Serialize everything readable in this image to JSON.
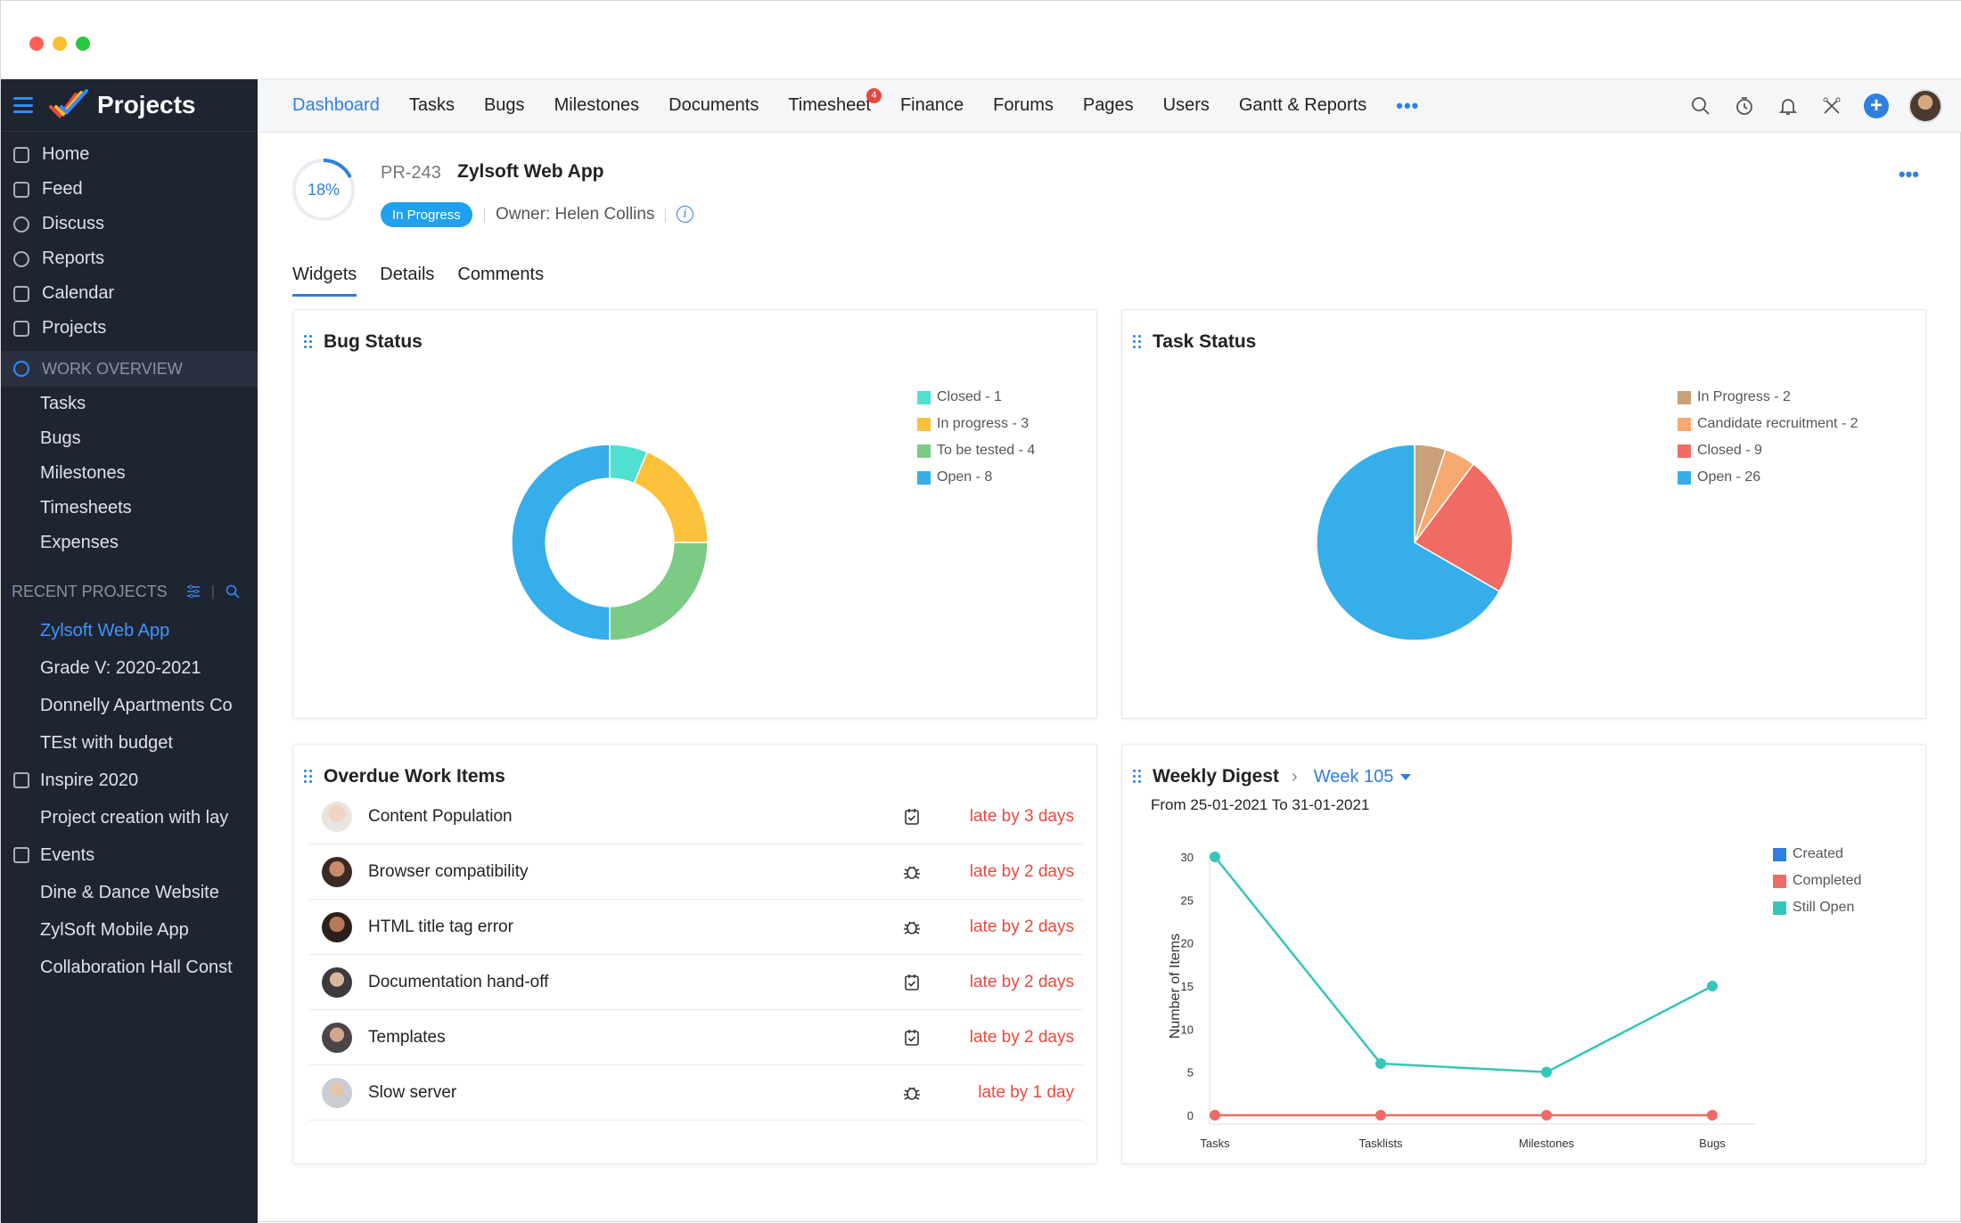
{
  "sidebar": {
    "brand": "Projects",
    "main_items": [
      {
        "label": "Home",
        "icon": "home-icon"
      },
      {
        "label": "Feed",
        "icon": "feed-icon"
      },
      {
        "label": "Discuss",
        "icon": "discuss-icon"
      },
      {
        "label": "Reports",
        "icon": "reports-icon"
      },
      {
        "label": "Calendar",
        "icon": "calendar-icon"
      },
      {
        "label": "Projects",
        "icon": "projects-icon"
      }
    ],
    "work_overview": {
      "label": "WORK OVERVIEW",
      "items": [
        "Tasks",
        "Bugs",
        "Milestones",
        "Timesheets",
        "Expenses"
      ]
    },
    "recent_projects": {
      "label": "RECENT PROJECTS",
      "items": [
        {
          "label": "Zylsoft Web App",
          "active": true,
          "group": false
        },
        {
          "label": "Grade V: 2020-2021",
          "active": false,
          "group": false
        },
        {
          "label": "Donnelly Apartments Co",
          "active": false,
          "group": false
        },
        {
          "label": "TEst with budget",
          "active": false,
          "group": false
        },
        {
          "label": "Inspire 2020",
          "active": false,
          "group": true
        },
        {
          "label": "Project creation with lay",
          "active": false,
          "group": false
        },
        {
          "label": "Events",
          "active": false,
          "group": true
        },
        {
          "label": "Dine & Dance Website",
          "active": false,
          "group": false
        },
        {
          "label": "ZylSoft Mobile App",
          "active": false,
          "group": false
        },
        {
          "label": "Collaboration Hall Const",
          "active": false,
          "group": false
        }
      ]
    }
  },
  "topnav": {
    "tabs": [
      "Dashboard",
      "Tasks",
      "Bugs",
      "Milestones",
      "Documents",
      "Timesheet",
      "Finance",
      "Forums",
      "Pages",
      "Users",
      "Gantt & Reports"
    ],
    "active_tab": "Dashboard",
    "timesheet_badge": "4",
    "more": "•••",
    "icons": [
      "search-icon",
      "timer-icon",
      "bell-icon",
      "tools-icon",
      "plus-icon",
      "user-avatar"
    ]
  },
  "project": {
    "progress_label": "18%",
    "progress": 0.18,
    "id": "PR-243",
    "name": "Zylsoft Web App",
    "status": "In Progress",
    "owner_label": "Owner:",
    "owner": "Helen Collins",
    "more": "•••"
  },
  "subtabs": [
    "Widgets",
    "Details",
    "Comments"
  ],
  "bug_status": {
    "title": "Bug Status",
    "legend": [
      "Closed - 1",
      "In progress - 3",
      "To be tested - 4",
      "Open - 8"
    ],
    "chart_data": {
      "type": "pie",
      "donut": true,
      "categories": [
        "Closed",
        "In progress",
        "To be tested",
        "Open"
      ],
      "values": [
        1,
        3,
        4,
        8
      ],
      "colors": [
        "#4fe0cf",
        "#fbc13b",
        "#7bcb84",
        "#35aeea"
      ]
    }
  },
  "task_status": {
    "title": "Task Status",
    "legend": [
      "In Progress - 2",
      "Candidate recruitment - 2",
      "Closed - 9",
      "Open - 26"
    ],
    "chart_data": {
      "type": "pie",
      "donut": false,
      "categories": [
        "In Progress",
        "Candidate recruitment",
        "Closed",
        "Open"
      ],
      "values": [
        2,
        2,
        9,
        26
      ],
      "colors": [
        "#c8a07a",
        "#f6a970",
        "#f06b64",
        "#35aeea"
      ]
    }
  },
  "overdue": {
    "title": "Overdue Work Items",
    "items": [
      {
        "label": "Content Population",
        "type": "task-icon",
        "late": "late by 3 days"
      },
      {
        "label": "Browser compatibility",
        "type": "bug-icon",
        "late": "late by 2 days"
      },
      {
        "label": "HTML title tag error",
        "type": "bug-icon",
        "late": "late by 2 days"
      },
      {
        "label": "Documentation hand-off",
        "type": "task-icon",
        "late": "late by 2 days"
      },
      {
        "label": "Templates",
        "type": "task-icon",
        "late": "late by 2 days"
      },
      {
        "label": "Slow server",
        "type": "bug-icon",
        "late": "late by 1 day"
      }
    ]
  },
  "weekly_digest": {
    "title": "Weekly Digest",
    "week": "Week 105",
    "range": "From 25-01-2021 To 31-01-2021",
    "chart_data": {
      "type": "line",
      "categories": [
        "Tasks",
        "Tasklists",
        "Milestones",
        "Bugs"
      ],
      "ylabel": "Number of Items",
      "ylim": [
        0,
        30
      ],
      "yticks": [
        0,
        5,
        10,
        15,
        20,
        25,
        30
      ],
      "series": [
        {
          "name": "Created",
          "color": "#2f7fe0",
          "values": [
            0,
            0,
            0,
            0
          ]
        },
        {
          "name": "Completed",
          "color": "#ee6a66",
          "values": [
            0,
            0,
            0,
            0
          ]
        },
        {
          "name": "Still Open",
          "color": "#34c6b8",
          "values": [
            30,
            6,
            5,
            15
          ]
        }
      ]
    }
  }
}
